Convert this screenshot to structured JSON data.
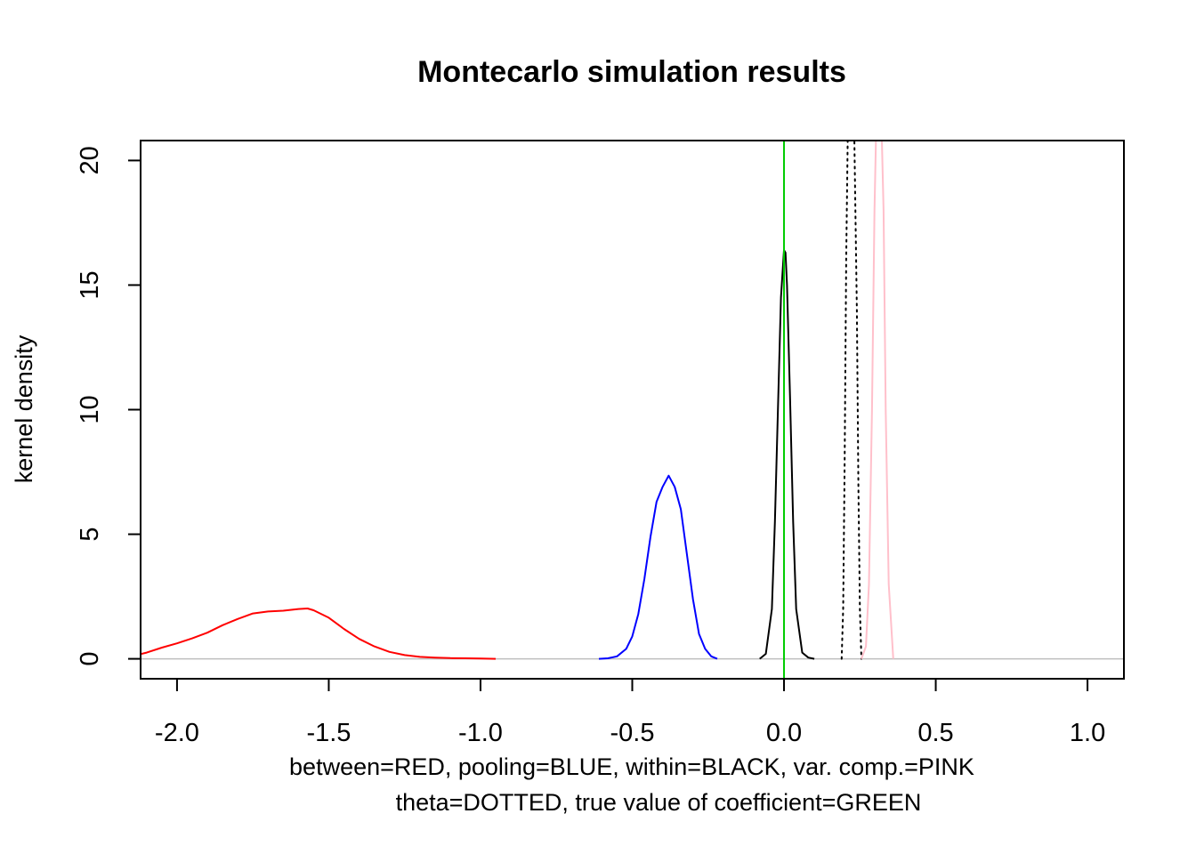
{
  "chart_data": {
    "type": "line",
    "title": "Montecarlo simulation results",
    "xlabel_lines": [
      "between=RED, pooling=BLUE, within=BLACK, var. comp.=PINK",
      "theta=DOTTED, true value of coefficient=GREEN"
    ],
    "ylabel": "kernel density",
    "xlim": [
      -2.12,
      1.12
    ],
    "ylim": [
      -0.8,
      20.8
    ],
    "xticks": [
      -2.0,
      -1.5,
      -1.0,
      -0.5,
      0.0,
      0.5,
      1.0
    ],
    "xtick_labels": [
      "-2.0",
      "-1.5",
      "-1.0",
      "-0.5",
      "0.0",
      "0.5",
      "1.0"
    ],
    "yticks": [
      0,
      5,
      10,
      15,
      20
    ],
    "ytick_labels": [
      "0",
      "5",
      "10",
      "15",
      "20"
    ],
    "baseline": {
      "y": 0,
      "color": "#bebebe"
    },
    "vertical_lines": [
      {
        "x": 0.0,
        "color": "#00cc00",
        "style": "solid"
      }
    ],
    "series": [
      {
        "color": "#ff0000",
        "style": "solid",
        "x": [
          -2.15,
          -2.1,
          -2.05,
          -2.0,
          -1.95,
          -1.9,
          -1.85,
          -1.8,
          -1.75,
          -1.7,
          -1.65,
          -1.6,
          -1.57,
          -1.55,
          -1.5,
          -1.45,
          -1.4,
          -1.35,
          -1.3,
          -1.25,
          -1.2,
          -1.15,
          -1.1,
          -1.05,
          -1.0,
          -0.95
        ],
        "y": [
          0.1,
          0.25,
          0.45,
          0.62,
          0.82,
          1.05,
          1.35,
          1.6,
          1.82,
          1.9,
          1.93,
          2.0,
          2.02,
          1.95,
          1.65,
          1.2,
          0.8,
          0.5,
          0.28,
          0.15,
          0.08,
          0.05,
          0.03,
          0.02,
          0.01,
          0.0
        ]
      },
      {
        "color": "#0000ff",
        "style": "solid",
        "x": [
          -0.61,
          -0.58,
          -0.55,
          -0.52,
          -0.5,
          -0.48,
          -0.46,
          -0.44,
          -0.42,
          -0.4,
          -0.38,
          -0.36,
          -0.34,
          -0.32,
          -0.3,
          -0.28,
          -0.26,
          -0.24,
          -0.22
        ],
        "y": [
          0.0,
          0.02,
          0.1,
          0.4,
          0.9,
          1.8,
          3.2,
          4.9,
          6.3,
          6.9,
          7.35,
          6.9,
          6.0,
          4.2,
          2.4,
          1.0,
          0.4,
          0.1,
          0.0
        ]
      },
      {
        "color": "#000000",
        "style": "solid",
        "x": [
          -0.08,
          -0.06,
          -0.04,
          -0.03,
          -0.02,
          -0.01,
          0.0,
          0.005,
          0.01,
          0.02,
          0.03,
          0.04,
          0.06,
          0.08,
          0.1
        ],
        "y": [
          0.0,
          0.2,
          2.0,
          5.5,
          10.0,
          14.5,
          16.4,
          16.3,
          15.0,
          10.5,
          5.5,
          2.0,
          0.25,
          0.05,
          0.0
        ]
      },
      {
        "color": "#000000",
        "style": "dotted",
        "x": [
          0.19,
          0.195,
          0.2,
          0.205,
          0.21,
          0.213
        ],
        "y": [
          0.0,
          2.0,
          8.0,
          16.0,
          20.8,
          22.0
        ]
      },
      {
        "color": "#000000",
        "style": "dotted",
        "x": [
          0.228,
          0.232,
          0.24,
          0.245,
          0.25,
          0.255
        ],
        "y": [
          22.0,
          20.8,
          14.0,
          7.0,
          2.0,
          0.0
        ]
      },
      {
        "color": "#ffc0cb",
        "style": "solid",
        "x": [
          0.255,
          0.27,
          0.28,
          0.29,
          0.298,
          0.305,
          0.32,
          0.328,
          0.335,
          0.345,
          0.36
        ],
        "y": [
          0.0,
          0.5,
          3.0,
          10.0,
          18.0,
          22.0,
          22.0,
          18.0,
          10.0,
          3.0,
          0.0
        ]
      }
    ]
  }
}
